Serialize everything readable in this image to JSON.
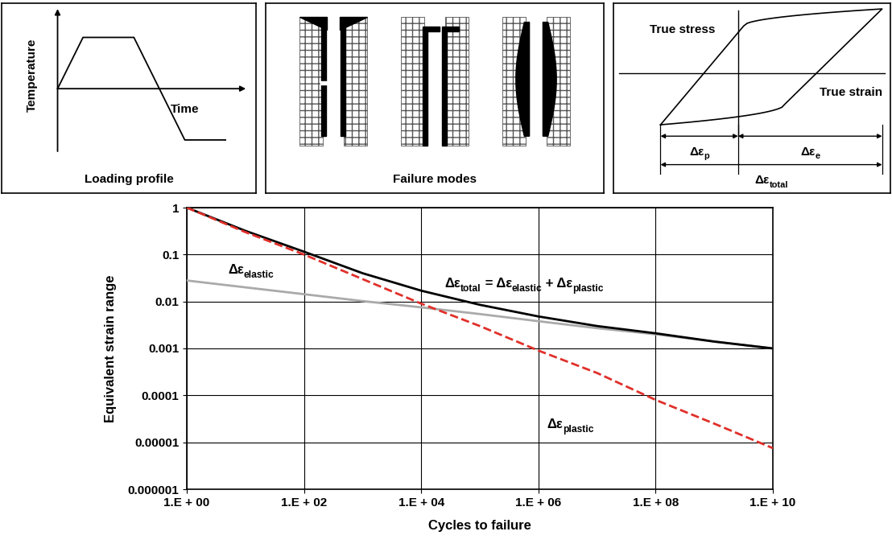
{
  "panels": [
    {
      "title": "Loading profile",
      "y_label": "Temperature",
      "x_label": "Time"
    },
    {
      "title": "Failure modes"
    },
    {
      "y_label": "True stress",
      "x_label": "True strain",
      "dimensions": [
        [
          [
            "Δε",
            false
          ],
          [
            "p",
            true
          ]
        ],
        [
          [
            "Δε",
            false
          ],
          [
            "e",
            true
          ]
        ],
        [
          [
            "Δε",
            false
          ],
          [
            "total",
            true
          ]
        ]
      ]
    }
  ],
  "chart_data": {
    "type": "line",
    "log": true,
    "grid": true,
    "x_label": "Cycles to failure",
    "y_label": "Equivalent strain range",
    "x": [
      1,
      10,
      100,
      1000,
      10000,
      100000,
      1000000,
      10000000,
      100000000,
      1000000000,
      10000000000
    ],
    "xlim": [
      1,
      10000000000
    ],
    "ylim": [
      1e-06,
      1
    ],
    "xticks": [
      {
        "value": 1,
        "label": "1.E + 00"
      },
      {
        "value": 100,
        "label": "1.E + 02"
      },
      {
        "value": 10000,
        "label": "1.E + 04"
      },
      {
        "value": 1000000,
        "label": "1.E + 06"
      },
      {
        "value": 100000000,
        "label": "1.E + 08"
      },
      {
        "value": 10000000000,
        "label": "1.E + 10"
      }
    ],
    "yticks": [
      1,
      0.1,
      0.01,
      0.001,
      0.0001,
      {
        "value": 1e-05,
        "label": "0.00001"
      },
      {
        "value": 1e-06,
        "label": "0.000001"
      }
    ],
    "series": [
      {
        "label": [
          [
            "Δε",
            false
          ],
          [
            "elastic",
            true
          ]
        ],
        "color": "#aaaaaa",
        "line_style": "solid",
        "values": [
          0.028,
          0.02,
          0.0143,
          0.0102,
          0.0075,
          0.0054,
          0.0038,
          0.0027,
          0.002,
          0.0014,
          0.001
        ]
      },
      {
        "label": [
          [
            "Δε",
            false
          ],
          [
            "total",
            true
          ],
          [
            " = Δε",
            false
          ],
          [
            "elastic",
            true
          ],
          [
            " + Δε",
            false
          ],
          [
            "plastic",
            true
          ]
        ],
        "color": "#000000",
        "line_style": "solid",
        "values": [
          1,
          0.32,
          0.115,
          0.04,
          0.017,
          0.0085,
          0.0048,
          0.003,
          0.0021,
          0.0014,
          0.001
        ]
      },
      {
        "label": [
          [
            "Δε",
            false
          ],
          [
            "plastic",
            true
          ]
        ],
        "color": "#e0302a",
        "line_style": "dashed",
        "values": [
          1,
          0.3,
          0.1,
          0.03,
          0.009,
          0.003,
          0.0009,
          0.0003,
          8e-05,
          2.5e-05,
          7.5e-06
        ]
      }
    ]
  }
}
